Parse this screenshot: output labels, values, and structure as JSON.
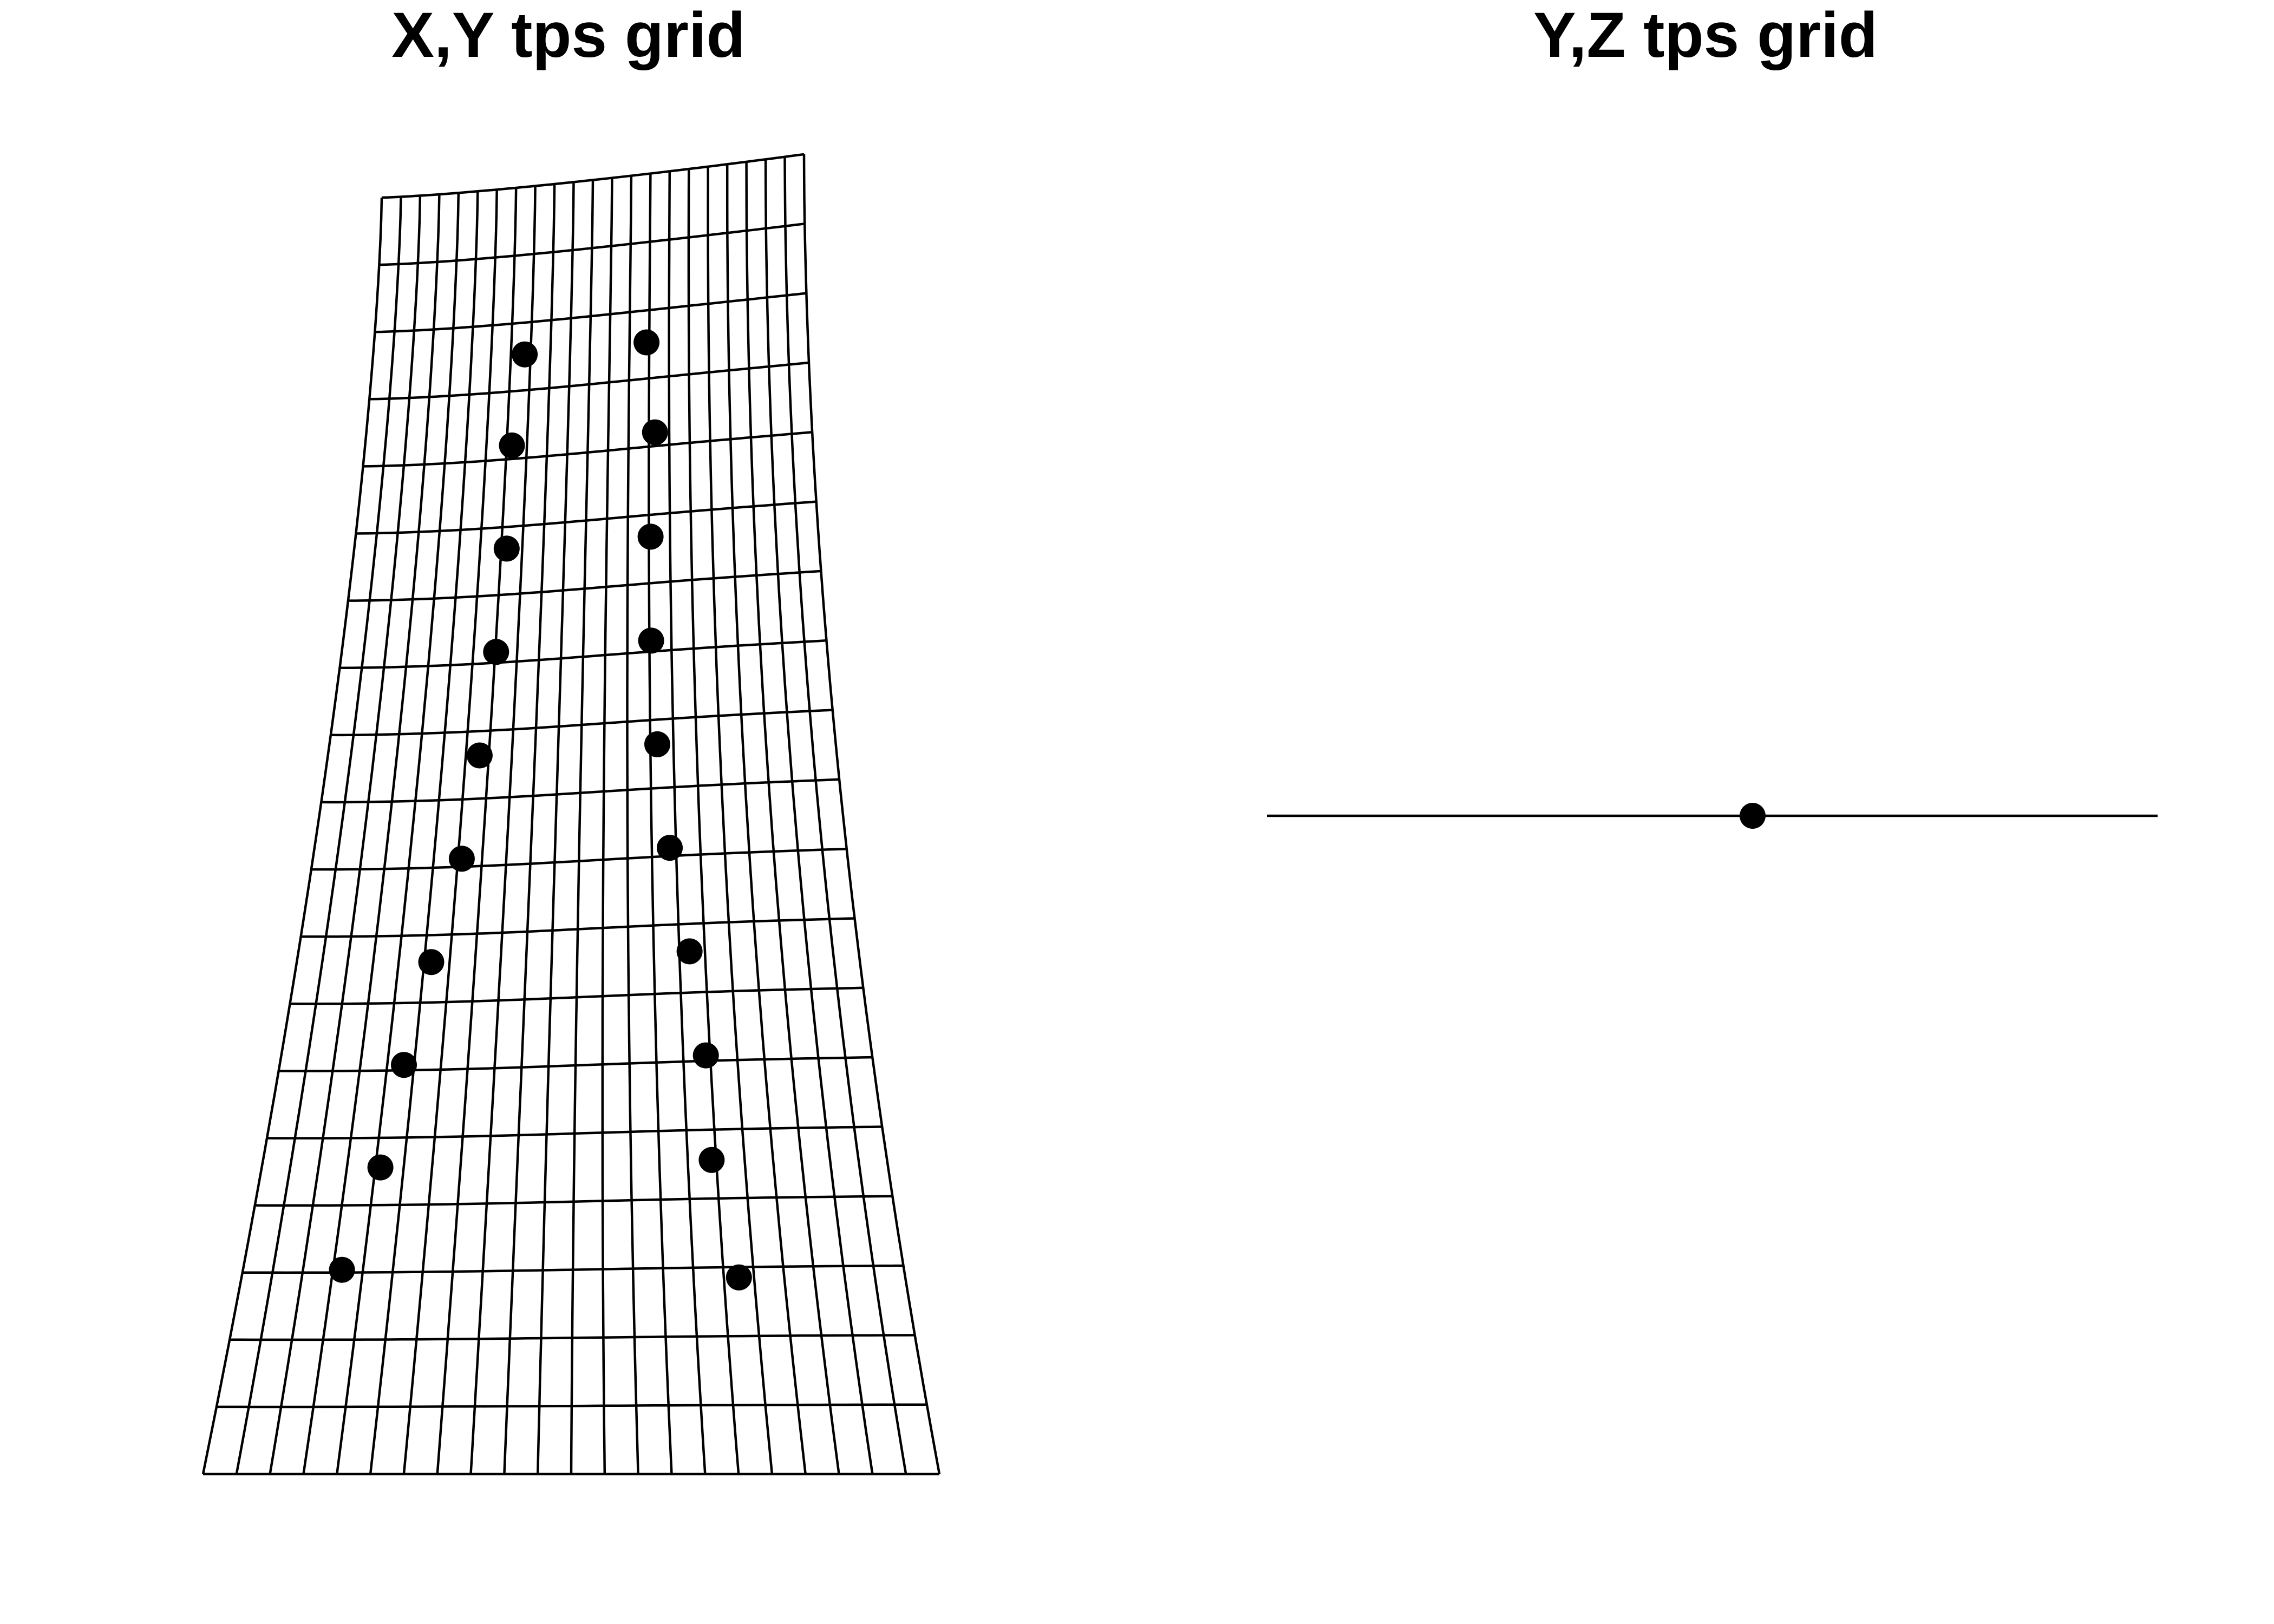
{
  "panels": {
    "xy": {
      "title": "X,Y tps grid"
    },
    "yz": {
      "title": "Y,Z tps grid"
    }
  },
  "colors": {
    "ink": "#000000",
    "background": "#ffffff"
  },
  "xy_grid": {
    "columns": 23,
    "rows": 20,
    "landmarks_left": [
      [
        0.35,
        0.87
      ],
      [
        0.33,
        0.8
      ],
      [
        0.33,
        0.72
      ],
      [
        0.32,
        0.64
      ],
      [
        0.3,
        0.56
      ],
      [
        0.28,
        0.48
      ],
      [
        0.24,
        0.4
      ],
      [
        0.21,
        0.32
      ],
      [
        0.19,
        0.24
      ],
      [
        0.15,
        0.16
      ]
    ],
    "landmarks_right": [
      [
        0.63,
        0.87
      ],
      [
        0.65,
        0.8
      ],
      [
        0.64,
        0.72
      ],
      [
        0.64,
        0.64
      ],
      [
        0.65,
        0.56
      ],
      [
        0.67,
        0.48
      ],
      [
        0.7,
        0.4
      ],
      [
        0.72,
        0.32
      ],
      [
        0.72,
        0.24
      ],
      [
        0.75,
        0.15
      ]
    ]
  },
  "yz_grid": {
    "landmarks": [
      [
        0.5,
        0.5
      ]
    ]
  }
}
